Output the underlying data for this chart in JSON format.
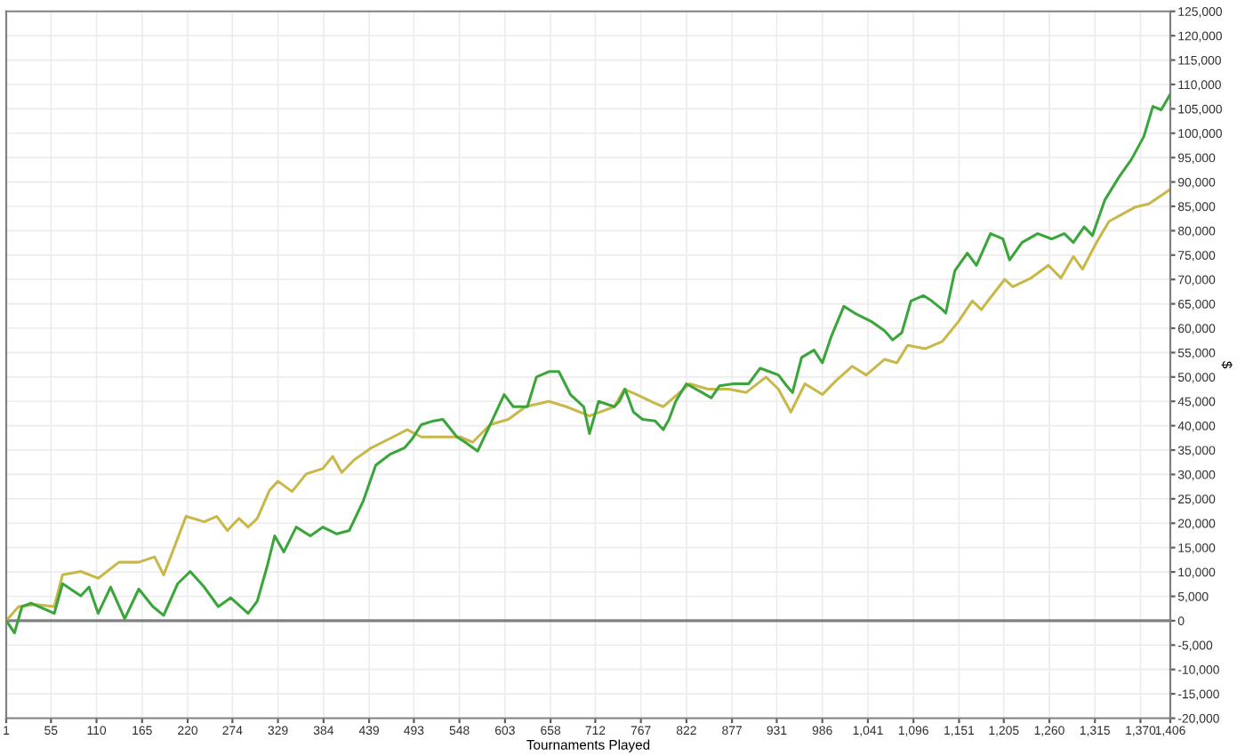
{
  "chart_data": {
    "type": "line",
    "xlabel": "Tournaments Played",
    "ylabel": "$",
    "grid": true,
    "legend": false,
    "marker": "none",
    "line_style": "solid",
    "xlim": [
      1,
      1406
    ],
    "xticks": [
      1,
      55,
      110,
      165,
      220,
      274,
      329,
      384,
      439,
      493,
      548,
      603,
      658,
      712,
      767,
      822,
      877,
      931,
      986,
      {
        "value": 1041,
        "label": "1,041"
      },
      {
        "value": 1096,
        "label": "1,096"
      },
      {
        "value": 1151,
        "label": "1,151"
      },
      {
        "value": 1205,
        "label": "1,205"
      },
      {
        "value": 1260,
        "label": "1,260"
      },
      {
        "value": 1315,
        "label": "1,315"
      },
      {
        "value": 1370,
        "label": "1,370"
      },
      {
        "value": 1406,
        "label": "1,406"
      }
    ],
    "ylim": [
      -20000,
      125000
    ],
    "yticks": [
      {
        "value": -20000,
        "label": "-20,000"
      },
      {
        "value": -15000,
        "label": "-15,000"
      },
      {
        "value": -10000,
        "label": "-10,000"
      },
      {
        "value": -5000,
        "label": "-5,000"
      },
      0,
      {
        "value": 5000,
        "label": "5,000"
      },
      {
        "value": 10000,
        "label": "10,000"
      },
      {
        "value": 15000,
        "label": "15,000"
      },
      {
        "value": 20000,
        "label": "20,000"
      },
      {
        "value": 25000,
        "label": "25,000"
      },
      {
        "value": 30000,
        "label": "30,000"
      },
      {
        "value": 35000,
        "label": "35,000"
      },
      {
        "value": 40000,
        "label": "40,000"
      },
      {
        "value": 45000,
        "label": "45,000"
      },
      {
        "value": 50000,
        "label": "50,000"
      },
      {
        "value": 55000,
        "label": "55,000"
      },
      {
        "value": 60000,
        "label": "60,000"
      },
      {
        "value": 65000,
        "label": "65,000"
      },
      {
        "value": 70000,
        "label": "70,000"
      },
      {
        "value": 75000,
        "label": "75,000"
      },
      {
        "value": 80000,
        "label": "80,000"
      },
      {
        "value": 85000,
        "label": "85,000"
      },
      {
        "value": 90000,
        "label": "90,000"
      },
      {
        "value": 95000,
        "label": "95,000"
      },
      {
        "value": 100000,
        "label": "100,000"
      },
      {
        "value": 105000,
        "label": "105,000"
      },
      {
        "value": 110000,
        "label": "110,000"
      },
      {
        "value": 115000,
        "label": "115,000"
      },
      {
        "value": 120000,
        "label": "120,000"
      },
      {
        "value": 125000,
        "label": "125,000"
      }
    ],
    "ref_lines": [
      {
        "axis": "y",
        "value": 0,
        "color": "#808080"
      }
    ],
    "series": [
      {
        "color": "#c8b84a",
        "x": [
          1,
          16,
          37,
          59,
          69,
          91,
          112,
          137,
          161,
          180,
          191,
          201,
          218,
          240,
          255,
          268,
          282,
          293,
          304,
          319,
          329,
          346,
          363,
          383,
          395,
          406,
          421,
          442,
          468,
          485,
          502,
          521,
          549,
          564,
          585,
          607,
          628,
          656,
          677,
          705,
          735,
          747,
          762,
          784,
          794,
          811,
          826,
          848,
          873,
          894,
          918,
          933,
          948,
          965,
          986,
          1003,
          1022,
          1039,
          1061,
          1076,
          1089,
          1110,
          1131,
          1150,
          1167,
          1178,
          1189,
          1206,
          1216,
          1238,
          1259,
          1274,
          1289,
          1300,
          1317,
          1332,
          1344,
          1363,
          1380,
          1406
        ],
        "values": [
          0,
          2900,
          3300,
          2900,
          9400,
          10100,
          8700,
          12000,
          12000,
          13100,
          9400,
          13800,
          21400,
          20300,
          21400,
          18500,
          21000,
          19200,
          21000,
          26800,
          28600,
          26500,
          30100,
          31200,
          33700,
          30400,
          33000,
          35500,
          37700,
          39200,
          37700,
          37700,
          37700,
          36600,
          40200,
          41300,
          43900,
          45000,
          43900,
          42000,
          43900,
          47500,
          46400,
          44600,
          43900,
          46400,
          48600,
          47500,
          47500,
          46800,
          50000,
          47500,
          42800,
          48600,
          46400,
          49300,
          52200,
          50400,
          53600,
          52900,
          56500,
          55800,
          57300,
          61300,
          65600,
          63800,
          66300,
          70000,
          68500,
          70300,
          72900,
          70300,
          74700,
          72100,
          77600,
          81900,
          83000,
          84800,
          85500,
          88500
        ]
      },
      {
        "color": "#3aa53a",
        "x": [
          1,
          11,
          20,
          31,
          59,
          69,
          91,
          101,
          112,
          127,
          144,
          161,
          178,
          191,
          208,
          223,
          240,
          257,
          272,
          293,
          304,
          316,
          325,
          336,
          351,
          368,
          383,
          400,
          415,
          432,
          447,
          464,
          482,
          491,
          502,
          517,
          528,
          545,
          555,
          570,
          585,
          602,
          613,
          630,
          641,
          656,
          668,
          682,
          698,
          705,
          716,
          735,
          741,
          748,
          758,
          769,
          784,
          794,
          801,
          809,
          822,
          841,
          852,
          862,
          879,
          897,
          911,
          922,
          933,
          943,
          950,
          961,
          976,
          986,
          997,
          1012,
          1025,
          1046,
          1061,
          1071,
          1082,
          1093,
          1108,
          1118,
          1131,
          1135,
          1146,
          1161,
          1172,
          1189,
          1204,
          1212,
          1227,
          1246,
          1263,
          1278,
          1289,
          1302,
          1312,
          1327,
          1344,
          1359,
          1374,
          1385,
          1395,
          1406
        ],
        "values": [
          0,
          -2500,
          2900,
          3600,
          1500,
          7600,
          5100,
          6900,
          1500,
          6900,
          400,
          6500,
          2900,
          1100,
          7600,
          10100,
          6900,
          2900,
          4700,
          1500,
          4000,
          11200,
          17400,
          14100,
          19200,
          17400,
          19200,
          17800,
          18500,
          24600,
          31900,
          34100,
          35500,
          37300,
          40200,
          41000,
          41300,
          37700,
          36600,
          34800,
          40200,
          46400,
          43900,
          43900,
          50000,
          51100,
          51100,
          46400,
          43900,
          38400,
          45000,
          43900,
          45000,
          47500,
          42800,
          41300,
          41000,
          39200,
          41300,
          45000,
          48600,
          46800,
          45700,
          48200,
          48600,
          48600,
          51800,
          51100,
          50400,
          48200,
          46800,
          54000,
          55500,
          52900,
          58400,
          64500,
          63100,
          61300,
          59500,
          57600,
          59100,
          65600,
          66700,
          65600,
          63800,
          63100,
          71800,
          75400,
          72900,
          79400,
          78300,
          74000,
          77600,
          79400,
          78300,
          79400,
          77600,
          80800,
          79000,
          86300,
          91000,
          94600,
          99300,
          105500,
          104800,
          108000
        ]
      }
    ]
  }
}
